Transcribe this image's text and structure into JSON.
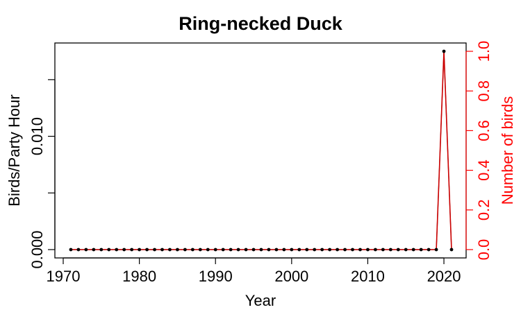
{
  "chart_data": {
    "type": "line",
    "title": "Ring-necked Duck",
    "xlabel": "Year",
    "ylabel_left": "Birds/Party Hour",
    "ylabel_right": "Number of birds",
    "xlim": [
      1970,
      2021
    ],
    "ylim_left": [
      0,
      0.0175
    ],
    "ylim_right": [
      0,
      1.0
    ],
    "x_ticks": [
      1970,
      1980,
      1990,
      2000,
      2010,
      2020
    ],
    "y_left_ticks": [
      0,
      0.005,
      0.01,
      0.015
    ],
    "y_left_tick_labels": [
      "0.000",
      "",
      "0.010",
      ""
    ],
    "y_right_ticks": [
      0,
      0.2,
      0.4,
      0.6,
      0.8,
      1.0
    ],
    "y_right_tick_labels": [
      "0.0",
      "0.2",
      "0.4",
      "0.6",
      "0.8",
      "1.0"
    ],
    "grid": false,
    "colors": {
      "birds_per_hour": "#000000",
      "number_of_birds": "#cc0000",
      "right_axis": "#ff0000"
    },
    "x": [
      1971,
      1972,
      1973,
      1974,
      1975,
      1976,
      1977,
      1978,
      1979,
      1980,
      1981,
      1982,
      1983,
      1984,
      1985,
      1986,
      1987,
      1988,
      1989,
      1990,
      1991,
      1992,
      1993,
      1994,
      1995,
      1996,
      1997,
      1998,
      1999,
      2000,
      2001,
      2002,
      2003,
      2004,
      2005,
      2006,
      2007,
      2008,
      2009,
      2010,
      2011,
      2012,
      2013,
      2014,
      2015,
      2016,
      2017,
      2018,
      2019,
      2020,
      2021
    ],
    "series": [
      {
        "axis": "left",
        "values": [
          0,
          0,
          0,
          0,
          0,
          0,
          0,
          0,
          0,
          0,
          0,
          0,
          0,
          0,
          0,
          0,
          0,
          0,
          0,
          0,
          0,
          0,
          0,
          0,
          0,
          0,
          0,
          0,
          0,
          0,
          0,
          0,
          0,
          0,
          0,
          0,
          0,
          0,
          0,
          0,
          0,
          0,
          0,
          0,
          0,
          0,
          0,
          0,
          0,
          0.0175,
          0
        ]
      },
      {
        "axis": "right",
        "values": [
          0,
          0,
          0,
          0,
          0,
          0,
          0,
          0,
          0,
          0,
          0,
          0,
          0,
          0,
          0,
          0,
          0,
          0,
          0,
          0,
          0,
          0,
          0,
          0,
          0,
          0,
          0,
          0,
          0,
          0,
          0,
          0,
          0,
          0,
          0,
          0,
          0,
          0,
          0,
          0,
          0,
          0,
          0,
          0,
          0,
          0,
          0,
          0,
          0,
          1,
          0
        ]
      }
    ]
  }
}
